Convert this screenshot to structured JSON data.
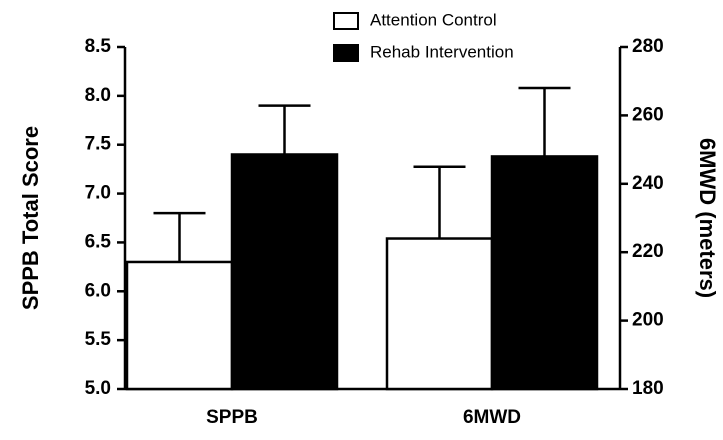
{
  "chart_data": {
    "type": "bar",
    "categories": [
      "SPPB",
      "6MWD"
    ],
    "category_axes": [
      "y",
      "y2"
    ],
    "y_label": "SPPB Total Score",
    "y2_label": "6MWD (meters)",
    "ylim": [
      5,
      8.5
    ],
    "yticks": [
      {
        "value": 5,
        "label": "5.0"
      },
      5.5,
      {
        "value": 6,
        "label": "6.0"
      },
      6.5,
      {
        "value": 7,
        "label": "7.0"
      },
      7.5,
      {
        "value": 8,
        "label": "8.0"
      },
      8.5
    ],
    "y2lim": [
      180,
      280
    ],
    "y2ticks": [
      180,
      200,
      220,
      240,
      260,
      280
    ],
    "series": [
      {
        "name": "Attention Control",
        "color": "#ffffff",
        "values": [
          6.3,
          224
        ],
        "errors": [
          0.5,
          21
        ]
      },
      {
        "name": "Rehab Intervention",
        "color": "#000000",
        "values": [
          7.4,
          248
        ],
        "errors": [
          0.5,
          20
        ]
      }
    ]
  }
}
